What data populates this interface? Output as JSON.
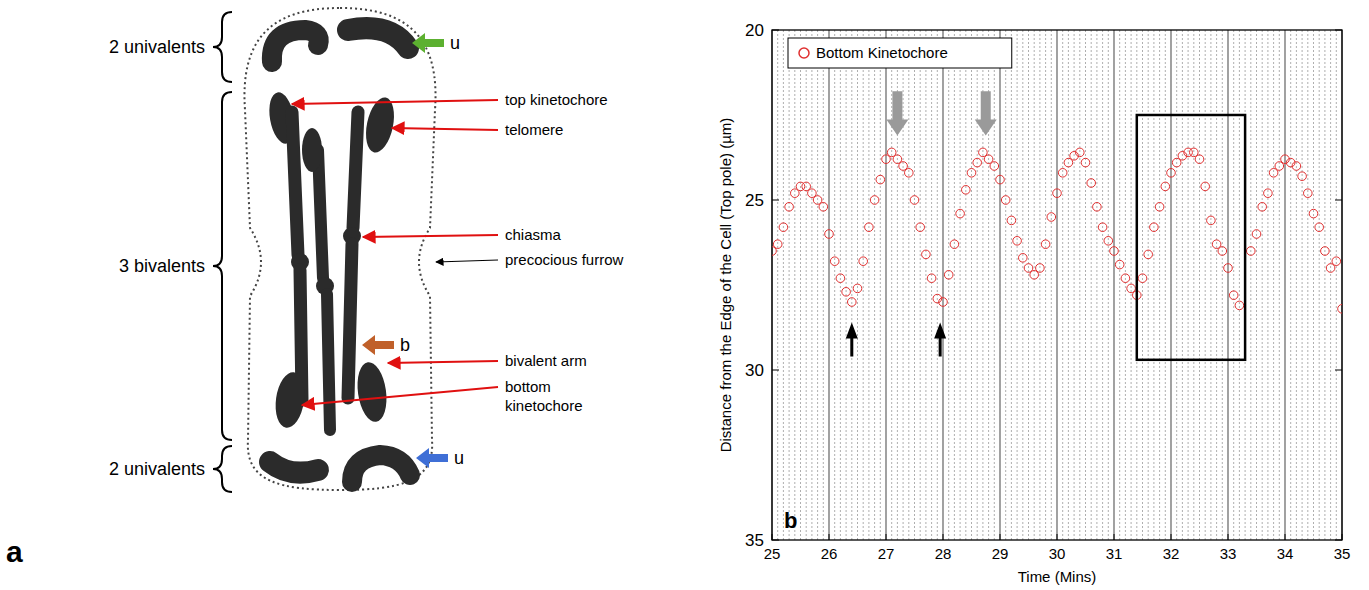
{
  "diagram": {
    "panel_label": "a",
    "groups": [
      {
        "label": "2 univalents"
      },
      {
        "label": "3 bivalents"
      },
      {
        "label": "2 univalents"
      }
    ],
    "callouts": [
      {
        "label": "top kinetochore",
        "color": "#e01010"
      },
      {
        "label": "telomere",
        "color": "#e01010"
      },
      {
        "label": "chiasma",
        "color": "#e01010"
      },
      {
        "label": "precocious furrow",
        "color": "#000000"
      },
      {
        "label": "bivalent arm",
        "color": "#e01010"
      },
      {
        "label": "bottom kinetochore",
        "color": "#e01010"
      }
    ],
    "markers": [
      {
        "label": "u",
        "color": "#5cb030"
      },
      {
        "label": "b",
        "color": "#c0602a"
      },
      {
        "label": "u",
        "color": "#3f6fd6"
      }
    ]
  },
  "chart_data": {
    "type": "scatter",
    "xlabel": "Time (Mins)",
    "ylabel": "Distance from the Edge of the Cell (Top pole) (µm)",
    "xlim": [
      25,
      35
    ],
    "xticks": [
      25,
      26,
      27,
      28,
      29,
      30,
      31,
      32,
      33,
      34,
      35
    ],
    "ylim": [
      35,
      20
    ],
    "yticks": [
      20,
      25,
      30,
      35
    ],
    "grid": "x",
    "legend": "top-left",
    "series": [
      {
        "name": "Bottom Kinetochore",
        "color": "#e03030",
        "marker": "circle",
        "x": [
          25.0,
          25.1,
          25.2,
          25.3,
          25.4,
          25.5,
          25.6,
          25.7,
          25.8,
          25.9,
          26.0,
          26.1,
          26.2,
          26.3,
          26.4,
          26.5,
          26.6,
          26.7,
          26.8,
          26.9,
          27.0,
          27.1,
          27.2,
          27.3,
          27.4,
          27.5,
          27.6,
          27.7,
          27.8,
          27.9,
          28.0,
          28.1,
          28.2,
          28.3,
          28.4,
          28.5,
          28.6,
          28.7,
          28.8,
          28.9,
          29.0,
          29.1,
          29.2,
          29.3,
          29.4,
          29.5,
          29.6,
          29.7,
          29.8,
          29.9,
          30.0,
          30.1,
          30.2,
          30.3,
          30.4,
          30.5,
          30.6,
          30.7,
          30.8,
          30.9,
          31.0,
          31.1,
          31.2,
          31.3,
          31.4,
          31.5,
          31.6,
          31.7,
          31.8,
          31.9,
          32.0,
          32.1,
          32.2,
          32.3,
          32.4,
          32.5,
          32.6,
          32.7,
          32.8,
          32.9,
          33.0,
          33.1,
          33.2,
          33.4,
          33.5,
          33.6,
          33.7,
          33.8,
          33.9,
          34.0,
          34.1,
          34.2,
          34.3,
          34.4,
          34.5,
          34.6,
          34.7,
          34.8,
          34.9,
          35.0
        ],
        "values": [
          26.5,
          26.3,
          25.8,
          25.2,
          24.8,
          24.6,
          24.6,
          24.8,
          25.0,
          25.2,
          26.0,
          26.8,
          27.3,
          27.7,
          28.0,
          27.6,
          26.8,
          25.8,
          25.0,
          24.4,
          23.8,
          23.6,
          23.8,
          24.0,
          24.2,
          25.0,
          25.8,
          26.6,
          27.3,
          27.9,
          28.0,
          27.2,
          26.3,
          25.4,
          24.7,
          24.2,
          23.9,
          23.6,
          23.8,
          24.0,
          24.4,
          25.0,
          25.6,
          26.2,
          26.7,
          27.0,
          27.2,
          27.0,
          26.3,
          25.5,
          24.8,
          24.2,
          23.9,
          23.7,
          23.6,
          23.9,
          24.5,
          25.2,
          25.8,
          26.2,
          26.5,
          26.9,
          27.3,
          27.6,
          27.8,
          27.3,
          26.6,
          25.8,
          25.2,
          24.6,
          24.2,
          23.9,
          23.7,
          23.6,
          23.6,
          23.8,
          24.6,
          25.6,
          26.3,
          26.5,
          27.0,
          27.8,
          28.1,
          26.5,
          26.0,
          25.2,
          24.8,
          24.2,
          24.0,
          23.8,
          23.9,
          24.0,
          24.3,
          24.8,
          25.4,
          25.8,
          26.5,
          27.0,
          26.8,
          28.2
        ]
      }
    ],
    "annotations": [
      {
        "type": "label",
        "text": "b"
      },
      {
        "type": "arrow",
        "x": 27.2,
        "y": [
          21.8,
          23.1
        ],
        "color": "#9a9a9a"
      },
      {
        "type": "arrow",
        "x": 28.75,
        "y": [
          21.8,
          23.1
        ],
        "color": "#9a9a9a"
      },
      {
        "type": "arrow",
        "x": 26.4,
        "y": [
          29.6,
          28.6
        ],
        "color": "#000000"
      },
      {
        "type": "arrow",
        "x": 27.95,
        "y": [
          29.6,
          28.6
        ],
        "color": "#000000"
      },
      {
        "type": "box",
        "x": [
          31.4,
          33.3
        ],
        "y": [
          22.5,
          29.7
        ],
        "color": "#000000"
      }
    ]
  }
}
